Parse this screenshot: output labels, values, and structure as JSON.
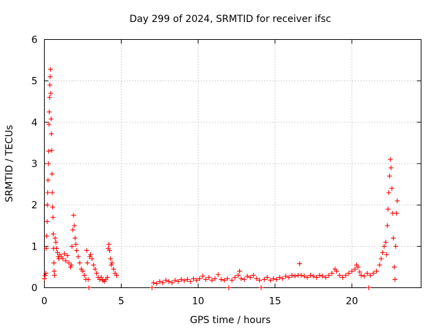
{
  "chart_data": {
    "type": "scatter",
    "title": "Day 299 of 2024, SRMTID for receiver ifsc",
    "xlabel": "GPS time / hours",
    "ylabel": "SRMTID / TECUs",
    "xlim": [
      0,
      24.5
    ],
    "ylim": [
      0,
      6
    ],
    "xticks": [
      0,
      5,
      10,
      15,
      20
    ],
    "yticks": [
      0,
      1,
      2,
      3,
      4,
      5,
      6
    ],
    "grid": true,
    "marker": "+",
    "color": "#ff0000",
    "series": [
      {
        "points": [
          [
            0.0,
            0.22
          ],
          [
            0.05,
            0.3
          ],
          [
            0.1,
            0.35
          ],
          [
            0.12,
            0.95
          ],
          [
            0.15,
            1.25
          ],
          [
            0.18,
            1.6
          ],
          [
            0.2,
            2.0
          ],
          [
            0.22,
            2.3
          ],
          [
            0.24,
            2.6
          ],
          [
            0.26,
            3.0
          ],
          [
            0.28,
            3.3
          ],
          [
            0.3,
            3.95
          ],
          [
            0.32,
            4.25
          ],
          [
            0.34,
            4.6
          ],
          [
            0.36,
            4.9
          ],
          [
            0.38,
            5.1
          ],
          [
            0.4,
            5.28
          ],
          [
            0.42,
            4.7
          ],
          [
            0.44,
            4.08
          ],
          [
            0.46,
            3.72
          ],
          [
            0.48,
            3.32
          ],
          [
            0.5,
            2.75
          ],
          [
            0.52,
            2.3
          ],
          [
            0.54,
            1.95
          ],
          [
            0.56,
            1.7
          ],
          [
            0.58,
            1.3
          ],
          [
            0.6,
            0.95
          ],
          [
            0.62,
            0.6
          ],
          [
            0.64,
            0.4
          ],
          [
            0.66,
            0.3
          ],
          [
            0.7,
            1.2
          ],
          [
            0.75,
            1.1
          ],
          [
            0.8,
            0.95
          ],
          [
            0.85,
            0.85
          ],
          [
            0.9,
            0.75
          ],
          [
            0.95,
            0.7
          ],
          [
            1.0,
            0.8
          ],
          [
            1.1,
            0.75
          ],
          [
            1.2,
            0.7
          ],
          [
            1.3,
            0.82
          ],
          [
            1.4,
            0.65
          ],
          [
            1.5,
            0.78
          ],
          [
            1.6,
            0.6
          ],
          [
            1.7,
            0.5
          ],
          [
            1.75,
            0.55
          ],
          [
            1.8,
            1.0
          ],
          [
            1.85,
            1.4
          ],
          [
            1.9,
            1.75
          ],
          [
            1.95,
            1.5
          ],
          [
            2.0,
            1.2
          ],
          [
            2.05,
            1.05
          ],
          [
            2.1,
            0.9
          ],
          [
            2.2,
            0.75
          ],
          [
            2.3,
            0.6
          ],
          [
            2.4,
            0.45
          ],
          [
            2.5,
            0.4
          ],
          [
            2.6,
            0.3
          ],
          [
            2.7,
            0.2
          ],
          [
            2.75,
            0.9
          ],
          [
            2.8,
            0.6
          ],
          [
            2.85,
            0.2
          ],
          [
            2.9,
            0.0
          ],
          [
            2.95,
            0.75
          ],
          [
            3.0,
            0.8
          ],
          [
            3.1,
            0.7
          ],
          [
            3.2,
            0.55
          ],
          [
            3.3,
            0.45
          ],
          [
            3.4,
            0.35
          ],
          [
            3.5,
            0.25
          ],
          [
            3.6,
            0.2
          ],
          [
            3.7,
            0.25
          ],
          [
            3.8,
            0.18
          ],
          [
            3.9,
            0.15
          ],
          [
            4.0,
            0.2
          ],
          [
            4.1,
            0.25
          ],
          [
            4.15,
            0.95
          ],
          [
            4.2,
            1.05
          ],
          [
            4.25,
            0.9
          ],
          [
            4.3,
            0.7
          ],
          [
            4.35,
            0.55
          ],
          [
            4.4,
            0.6
          ],
          [
            4.5,
            0.45
          ],
          [
            4.6,
            0.35
          ],
          [
            4.7,
            0.3
          ],
          [
            7.0,
            0.0
          ],
          [
            7.1,
            0.12
          ],
          [
            7.3,
            0.1
          ],
          [
            7.5,
            0.15
          ],
          [
            7.7,
            0.12
          ],
          [
            7.9,
            0.18
          ],
          [
            8.1,
            0.15
          ],
          [
            8.3,
            0.12
          ],
          [
            8.5,
            0.18
          ],
          [
            8.7,
            0.15
          ],
          [
            8.9,
            0.2
          ],
          [
            9.1,
            0.17
          ],
          [
            9.3,
            0.2
          ],
          [
            9.5,
            0.15
          ],
          [
            9.7,
            0.22
          ],
          [
            9.9,
            0.18
          ],
          [
            10.1,
            0.22
          ],
          [
            10.3,
            0.28
          ],
          [
            10.5,
            0.2
          ],
          [
            10.7,
            0.25
          ],
          [
            10.9,
            0.18
          ],
          [
            11.1,
            0.22
          ],
          [
            11.3,
            0.32
          ],
          [
            11.5,
            0.2
          ],
          [
            11.7,
            0.18
          ],
          [
            11.9,
            0.22
          ],
          [
            12.0,
            0.0
          ],
          [
            12.2,
            0.18
          ],
          [
            12.4,
            0.25
          ],
          [
            12.6,
            0.3
          ],
          [
            12.7,
            0.4
          ],
          [
            12.8,
            0.22
          ],
          [
            13.0,
            0.2
          ],
          [
            13.2,
            0.28
          ],
          [
            13.4,
            0.25
          ],
          [
            13.6,
            0.3
          ],
          [
            13.8,
            0.22
          ],
          [
            14.0,
            0.18
          ],
          [
            14.1,
            0.0
          ],
          [
            14.3,
            0.2
          ],
          [
            14.5,
            0.25
          ],
          [
            14.7,
            0.18
          ],
          [
            14.9,
            0.22
          ],
          [
            15.1,
            0.2
          ],
          [
            15.3,
            0.25
          ],
          [
            15.5,
            0.22
          ],
          [
            15.7,
            0.28
          ],
          [
            15.9,
            0.25
          ],
          [
            16.1,
            0.3
          ],
          [
            16.3,
            0.28
          ],
          [
            16.5,
            0.3
          ],
          [
            16.6,
            0.58
          ],
          [
            16.7,
            0.3
          ],
          [
            16.9,
            0.28
          ],
          [
            17.1,
            0.25
          ],
          [
            17.3,
            0.3
          ],
          [
            17.5,
            0.28
          ],
          [
            17.7,
            0.25
          ],
          [
            17.9,
            0.3
          ],
          [
            18.1,
            0.28
          ],
          [
            18.3,
            0.25
          ],
          [
            18.5,
            0.3
          ],
          [
            18.7,
            0.35
          ],
          [
            18.9,
            0.45
          ],
          [
            19.0,
            0.4
          ],
          [
            19.2,
            0.3
          ],
          [
            19.4,
            0.25
          ],
          [
            19.6,
            0.3
          ],
          [
            19.8,
            0.35
          ],
          [
            20.0,
            0.4
          ],
          [
            20.2,
            0.45
          ],
          [
            20.3,
            0.55
          ],
          [
            20.4,
            0.5
          ],
          [
            20.5,
            0.38
          ],
          [
            20.6,
            0.3
          ],
          [
            20.8,
            0.28
          ],
          [
            21.0,
            0.35
          ],
          [
            21.1,
            0.0
          ],
          [
            21.2,
            0.3
          ],
          [
            21.4,
            0.35
          ],
          [
            21.6,
            0.4
          ],
          [
            21.8,
            0.55
          ],
          [
            21.9,
            0.7
          ],
          [
            22.0,
            0.85
          ],
          [
            22.1,
            1.0
          ],
          [
            22.2,
            1.1
          ],
          [
            22.25,
            0.8
          ],
          [
            22.3,
            1.5
          ],
          [
            22.35,
            1.9
          ],
          [
            22.4,
            2.3
          ],
          [
            22.45,
            2.7
          ],
          [
            22.5,
            3.1
          ],
          [
            22.55,
            2.9
          ],
          [
            22.6,
            2.4
          ],
          [
            22.65,
            1.8
          ],
          [
            22.7,
            1.2
          ],
          [
            22.75,
            0.5
          ],
          [
            22.8,
            0.2
          ],
          [
            22.85,
            1.0
          ],
          [
            22.9,
            1.8
          ],
          [
            22.95,
            2.1
          ]
        ]
      }
    ]
  }
}
